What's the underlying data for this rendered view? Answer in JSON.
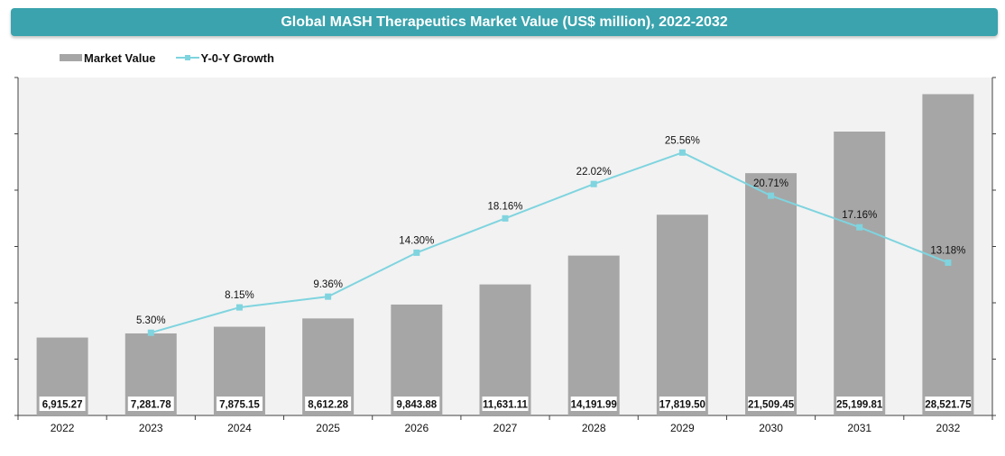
{
  "colors": {
    "title_bg": "#3aa3ad",
    "plot_bg": "#f2f2f2",
    "bar": "#a6a6a6",
    "line": "#7fd4df",
    "axis": "#404040"
  },
  "chart_data": {
    "type": "bar",
    "title": "Global MASH Therapeutics Market Value (US$ million), 2022-2032",
    "categories": [
      "2022",
      "2023",
      "2024",
      "2025",
      "2026",
      "2027",
      "2028",
      "2029",
      "2030",
      "2031",
      "2032"
    ],
    "series": [
      {
        "name": "Market Value",
        "type": "bar",
        "axis": "left",
        "values": [
          6915.27,
          7281.78,
          7875.15,
          8612.28,
          9843.88,
          11631.11,
          14191.99,
          17819.5,
          21509.45,
          25199.81,
          28521.75
        ],
        "labels": [
          "6,915.27",
          "7,281.78",
          "7,875.15",
          "8,612.28",
          "9,843.88",
          "11,631.11",
          "14,191.99",
          "17,819.50",
          "21,509.45",
          "25,199.81",
          "28,521.75"
        ]
      },
      {
        "name": "Y-0-Y Growth",
        "type": "line",
        "axis": "right",
        "values": [
          null,
          5.3,
          8.15,
          9.36,
          14.3,
          18.16,
          22.02,
          25.56,
          20.71,
          17.16,
          13.18
        ],
        "labels": [
          null,
          "5.30%",
          "8.15%",
          "9.36%",
          "14.30%",
          "18.16%",
          "22.02%",
          "25.56%",
          "20.71%",
          "17.16%",
          "13.18%"
        ]
      }
    ],
    "left_axis_range": [
      0,
      30000
    ],
    "right_axis_range": [
      -4,
      34
    ],
    "legend_position": "top-left"
  }
}
